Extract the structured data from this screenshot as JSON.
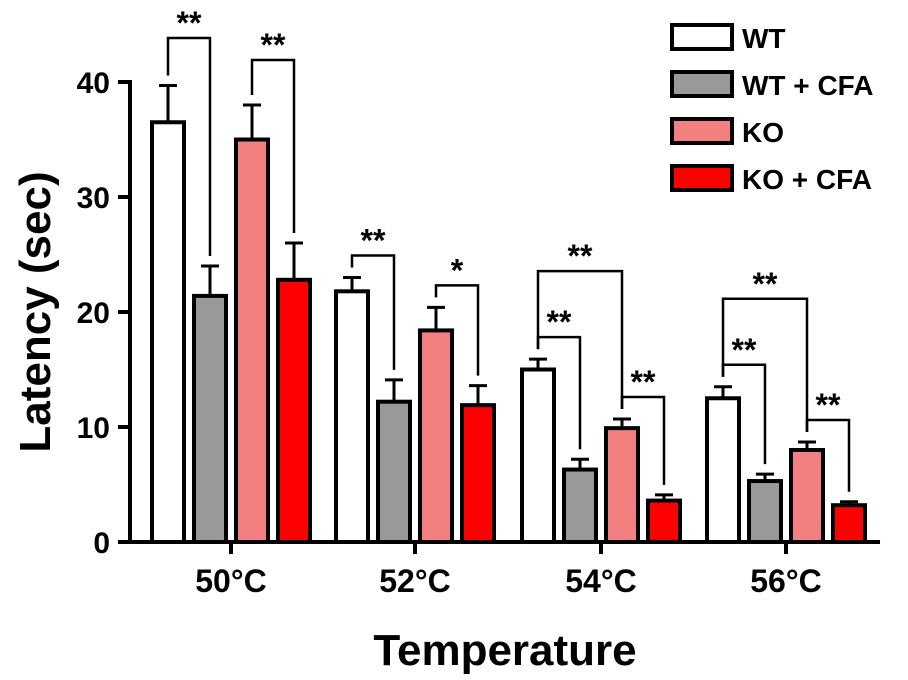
{
  "chart_data": {
    "type": "bar",
    "xlabel": "Temperature",
    "ylabel": "Latency (sec)",
    "ylim": [
      0,
      40
    ],
    "yticks": [
      "0",
      "10",
      "20",
      "30",
      "40"
    ],
    "categories": [
      "50°C",
      "52°C",
      "54°C",
      "56°C"
    ],
    "legend_position": "top-right",
    "series": [
      {
        "name": "WT",
        "color": "#ffffff",
        "values": [
          36.5,
          21.8,
          15.0,
          12.5
        ],
        "errors": [
          3.2,
          1.2,
          0.9,
          1.0
        ]
      },
      {
        "name": "WT + CFA",
        "color": "#999999",
        "values": [
          21.4,
          12.2,
          6.3,
          5.3
        ],
        "errors": [
          2.6,
          1.9,
          0.9,
          0.6
        ]
      },
      {
        "name": "KO",
        "color": "#f28080",
        "values": [
          35.0,
          18.4,
          9.9,
          8.0
        ],
        "errors": [
          3.0,
          2.0,
          0.8,
          0.7
        ]
      },
      {
        "name": "KO + CFA",
        "color": "#ff0000",
        "values": [
          22.8,
          11.9,
          3.6,
          3.2
        ],
        "errors": [
          3.2,
          1.7,
          0.5,
          0.3
        ]
      }
    ],
    "annotations": [
      {
        "group": 0,
        "a": 0,
        "b": 1,
        "label": "**"
      },
      {
        "group": 0,
        "a": 2,
        "b": 3,
        "label": "**"
      },
      {
        "group": 1,
        "a": 0,
        "b": 1,
        "label": "**"
      },
      {
        "group": 1,
        "a": 2,
        "b": 3,
        "label": "*"
      },
      {
        "group": 2,
        "a": 0,
        "b": 2,
        "label": "**"
      },
      {
        "group": 2,
        "a": 0,
        "b": 1,
        "label": "**"
      },
      {
        "group": 2,
        "a": 2,
        "b": 3,
        "label": "**"
      },
      {
        "group": 3,
        "a": 0,
        "b": 2,
        "label": "**"
      },
      {
        "group": 3,
        "a": 0,
        "b": 1,
        "label": "**"
      },
      {
        "group": 3,
        "a": 2,
        "b": 3,
        "label": "**"
      }
    ]
  }
}
